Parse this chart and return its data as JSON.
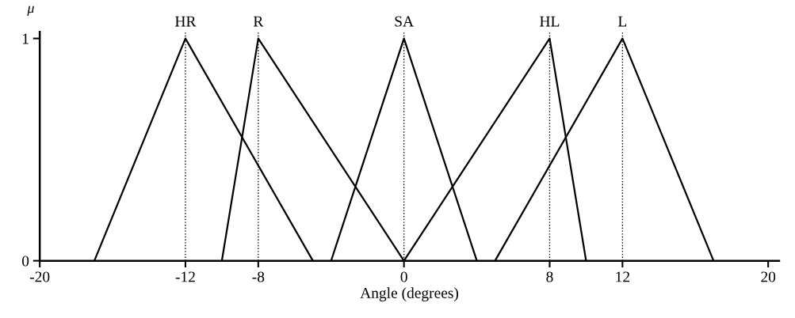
{
  "chart_data": {
    "type": "line",
    "xlabel": "Angle (degrees)",
    "ylabel": "μ",
    "series": [
      {
        "name": "HR",
        "color": "#000000",
        "x": [
          -17,
          -12,
          -5
        ],
        "values": [
          0,
          1,
          0
        ]
      },
      {
        "name": "R",
        "color": "#000000",
        "x": [
          -10,
          -8,
          0
        ],
        "values": [
          0,
          1,
          0
        ]
      },
      {
        "name": "SA",
        "color": "#000000",
        "x": [
          -4,
          0,
          4
        ],
        "values": [
          0,
          1,
          0
        ]
      },
      {
        "name": "HL",
        "color": "#000000",
        "x": [
          0,
          8,
          10
        ],
        "values": [
          0,
          1,
          0
        ]
      },
      {
        "name": "L",
        "color": "#000000",
        "x": [
          5,
          12,
          17
        ],
        "values": [
          0,
          1,
          0
        ]
      }
    ],
    "ref_lines": [
      {
        "axis": "x",
        "value": -12,
        "line_style": "dotted",
        "color": "#000000"
      },
      {
        "axis": "x",
        "value": -8,
        "line_style": "dotted",
        "color": "#000000"
      },
      {
        "axis": "x",
        "value": 0,
        "line_style": "dotted",
        "color": "#000000"
      },
      {
        "axis": "x",
        "value": 8,
        "line_style": "dotted",
        "color": "#000000"
      },
      {
        "axis": "x",
        "value": 12,
        "line_style": "dotted",
        "color": "#000000"
      }
    ],
    "xlim": [
      -20,
      20.6
    ],
    "ylim": [
      0,
      1.03
    ],
    "xticks": [
      -20,
      -12,
      -8,
      0,
      8,
      12,
      20
    ],
    "yticks": [
      0,
      1
    ],
    "grid": false,
    "legend": false,
    "marker": "none",
    "line_style": "solid"
  }
}
